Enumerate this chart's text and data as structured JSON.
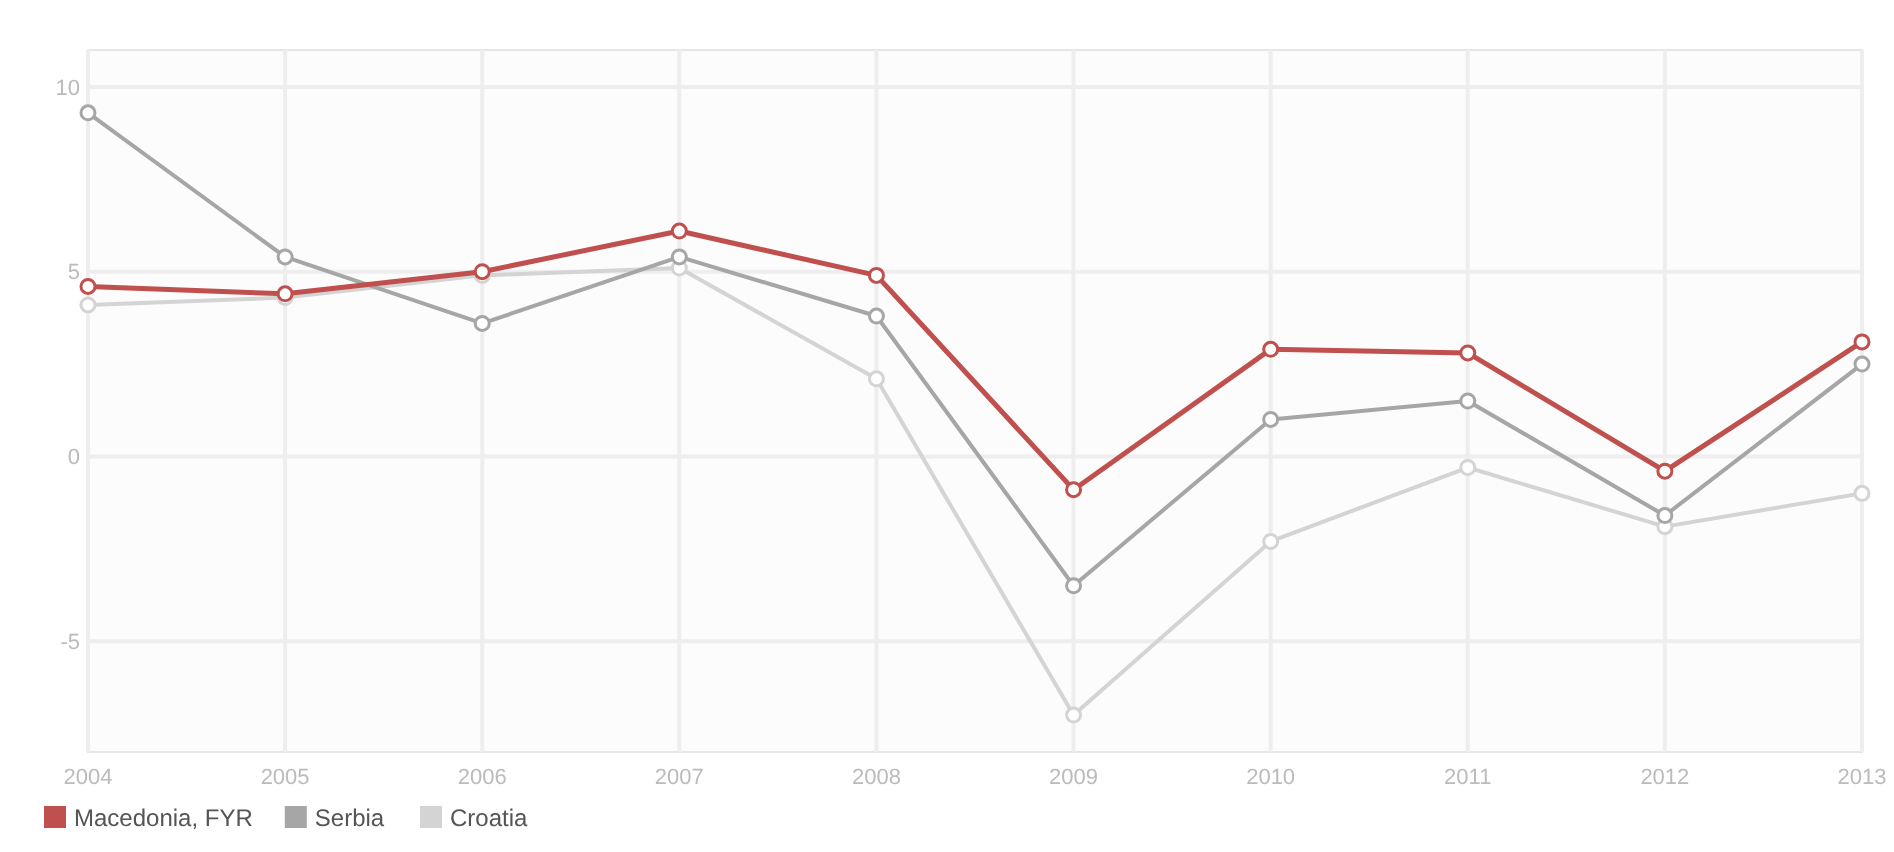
{
  "chart_data": {
    "type": "line",
    "categories": [
      "2004",
      "2005",
      "2006",
      "2007",
      "2008",
      "2009",
      "2010",
      "2011",
      "2012",
      "2013"
    ],
    "series": [
      {
        "name": "Macedonia, FYR",
        "color": "#c0504d",
        "values": [
          4.6,
          4.4,
          5.0,
          6.1,
          4.9,
          -0.9,
          2.9,
          2.8,
          -0.4,
          3.1
        ]
      },
      {
        "name": "Serbia",
        "color": "#a6a6a6",
        "values": [
          9.3,
          5.4,
          3.6,
          5.4,
          3.8,
          -3.5,
          1.0,
          1.5,
          -1.6,
          2.5
        ]
      },
      {
        "name": "Croatia",
        "color": "#d4d4d4",
        "values": [
          4.1,
          4.3,
          4.9,
          5.1,
          2.1,
          -7.0,
          -2.3,
          -0.3,
          -1.9,
          -1.0
        ]
      }
    ],
    "ylim": [
      -8,
      11
    ],
    "yticks": [
      -5,
      0,
      5,
      10
    ],
    "grid": true,
    "legend": "bottom left",
    "marker": "circle",
    "line_style": "solid"
  }
}
